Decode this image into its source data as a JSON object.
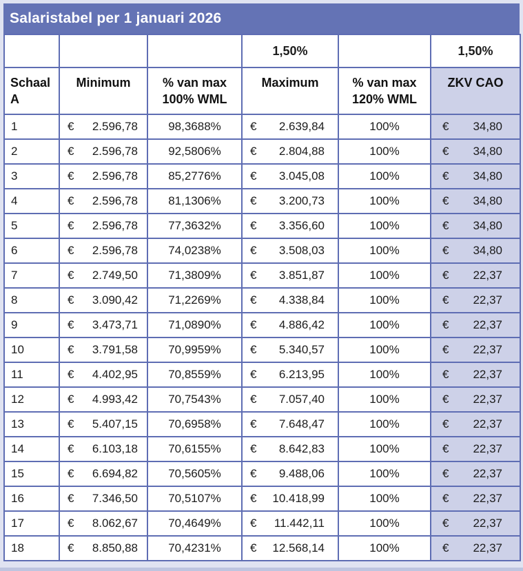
{
  "title": "Salaristabel per 1 januari 2026",
  "currency": "€",
  "pre_header": {
    "maximum_rate": "1,50%",
    "zkv_rate": "1,50%"
  },
  "columns": {
    "schaal": {
      "line1": "Schaal",
      "line2": "A"
    },
    "minimum": {
      "line1": "Minimum",
      "line2": ""
    },
    "pct100": {
      "line1": "% van max",
      "line2": "100% WML"
    },
    "maximum": {
      "line1": "Maximum",
      "line2": ""
    },
    "pct120": {
      "line1": "% van max",
      "line2": "120% WML"
    },
    "zkv": {
      "line1": "ZKV CAO",
      "line2": ""
    }
  },
  "colors": {
    "title_bar": "#6473b5",
    "border": "#5e6db3",
    "zkv_fill": "#cdd1e8",
    "page_background": "#e0e3f1",
    "title_text": "#ffffff",
    "body_text": "#1c1c1c"
  },
  "rows": [
    {
      "schaal": "1",
      "minimum": "2.596,78",
      "pct100": "98,3688%",
      "maximum": "2.639,84",
      "pct120": "100%",
      "zkv": "34,80"
    },
    {
      "schaal": "2",
      "minimum": "2.596,78",
      "pct100": "92,5806%",
      "maximum": "2.804,88",
      "pct120": "100%",
      "zkv": "34,80"
    },
    {
      "schaal": "3",
      "minimum": "2.596,78",
      "pct100": "85,2776%",
      "maximum": "3.045,08",
      "pct120": "100%",
      "zkv": "34,80"
    },
    {
      "schaal": "4",
      "minimum": "2.596,78",
      "pct100": "81,1306%",
      "maximum": "3.200,73",
      "pct120": "100%",
      "zkv": "34,80"
    },
    {
      "schaal": "5",
      "minimum": "2.596,78",
      "pct100": "77,3632%",
      "maximum": "3.356,60",
      "pct120": "100%",
      "zkv": "34,80"
    },
    {
      "schaal": "6",
      "minimum": "2.596,78",
      "pct100": "74,0238%",
      "maximum": "3.508,03",
      "pct120": "100%",
      "zkv": "34,80"
    },
    {
      "schaal": "7",
      "minimum": "2.749,50",
      "pct100": "71,3809%",
      "maximum": "3.851,87",
      "pct120": "100%",
      "zkv": "22,37"
    },
    {
      "schaal": "8",
      "minimum": "3.090,42",
      "pct100": "71,2269%",
      "maximum": "4.338,84",
      "pct120": "100%",
      "zkv": "22,37"
    },
    {
      "schaal": "9",
      "minimum": "3.473,71",
      "pct100": "71,0890%",
      "maximum": "4.886,42",
      "pct120": "100%",
      "zkv": "22,37"
    },
    {
      "schaal": "10",
      "minimum": "3.791,58",
      "pct100": "70,9959%",
      "maximum": "5.340,57",
      "pct120": "100%",
      "zkv": "22,37"
    },
    {
      "schaal": "11",
      "minimum": "4.402,95",
      "pct100": "70,8559%",
      "maximum": "6.213,95",
      "pct120": "100%",
      "zkv": "22,37"
    },
    {
      "schaal": "12",
      "minimum": "4.993,42",
      "pct100": "70,7543%",
      "maximum": "7.057,40",
      "pct120": "100%",
      "zkv": "22,37"
    },
    {
      "schaal": "13",
      "minimum": "5.407,15",
      "pct100": "70,6958%",
      "maximum": "7.648,47",
      "pct120": "100%",
      "zkv": "22,37"
    },
    {
      "schaal": "14",
      "minimum": "6.103,18",
      "pct100": "70,6155%",
      "maximum": "8.642,83",
      "pct120": "100%",
      "zkv": "22,37"
    },
    {
      "schaal": "15",
      "minimum": "6.694,82",
      "pct100": "70,5605%",
      "maximum": "9.488,06",
      "pct120": "100%",
      "zkv": "22,37"
    },
    {
      "schaal": "16",
      "minimum": "7.346,50",
      "pct100": "70,5107%",
      "maximum": "10.418,99",
      "pct120": "100%",
      "zkv": "22,37"
    },
    {
      "schaal": "17",
      "minimum": "8.062,67",
      "pct100": "70,4649%",
      "maximum": "11.442,11",
      "pct120": "100%",
      "zkv": "22,37"
    },
    {
      "schaal": "18",
      "minimum": "8.850,88",
      "pct100": "70,4231%",
      "maximum": "12.568,14",
      "pct120": "100%",
      "zkv": "22,37"
    }
  ]
}
